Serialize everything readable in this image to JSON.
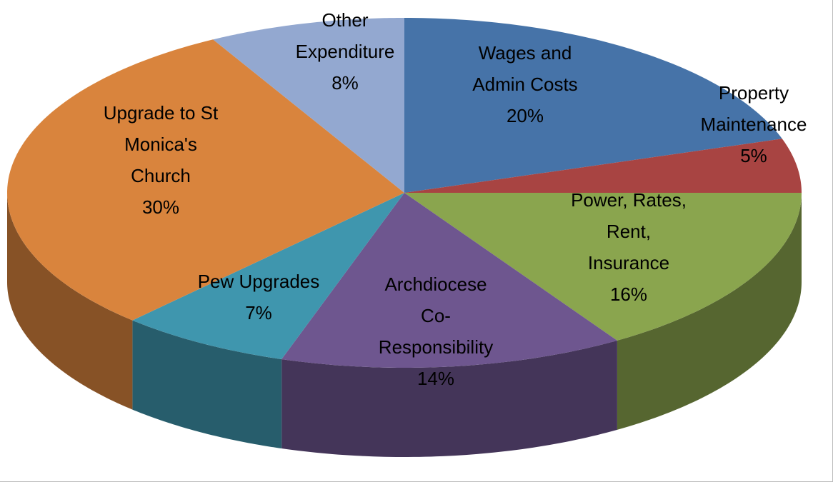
{
  "chart_data": {
    "type": "pie3d",
    "categories": [
      "Wages and Admin Costs",
      "Property Maintenance",
      "Power, Rates, Rent, Insurance",
      "Archdiocese Co-Responsibility",
      "Pew Upgrades",
      "Upgrade to St Monica's Church",
      "Other Expenditure"
    ],
    "values": [
      20,
      5,
      16,
      14,
      7,
      30,
      8
    ],
    "value_labels": [
      "20%",
      "5%",
      "16%",
      "14%",
      "7%",
      "30%",
      "8%"
    ],
    "colors": [
      "#4673a8",
      "#a84442",
      "#8aa54e",
      "#6e568f",
      "#3f96ae",
      "#d9843d",
      "#93a8d0"
    ]
  }
}
